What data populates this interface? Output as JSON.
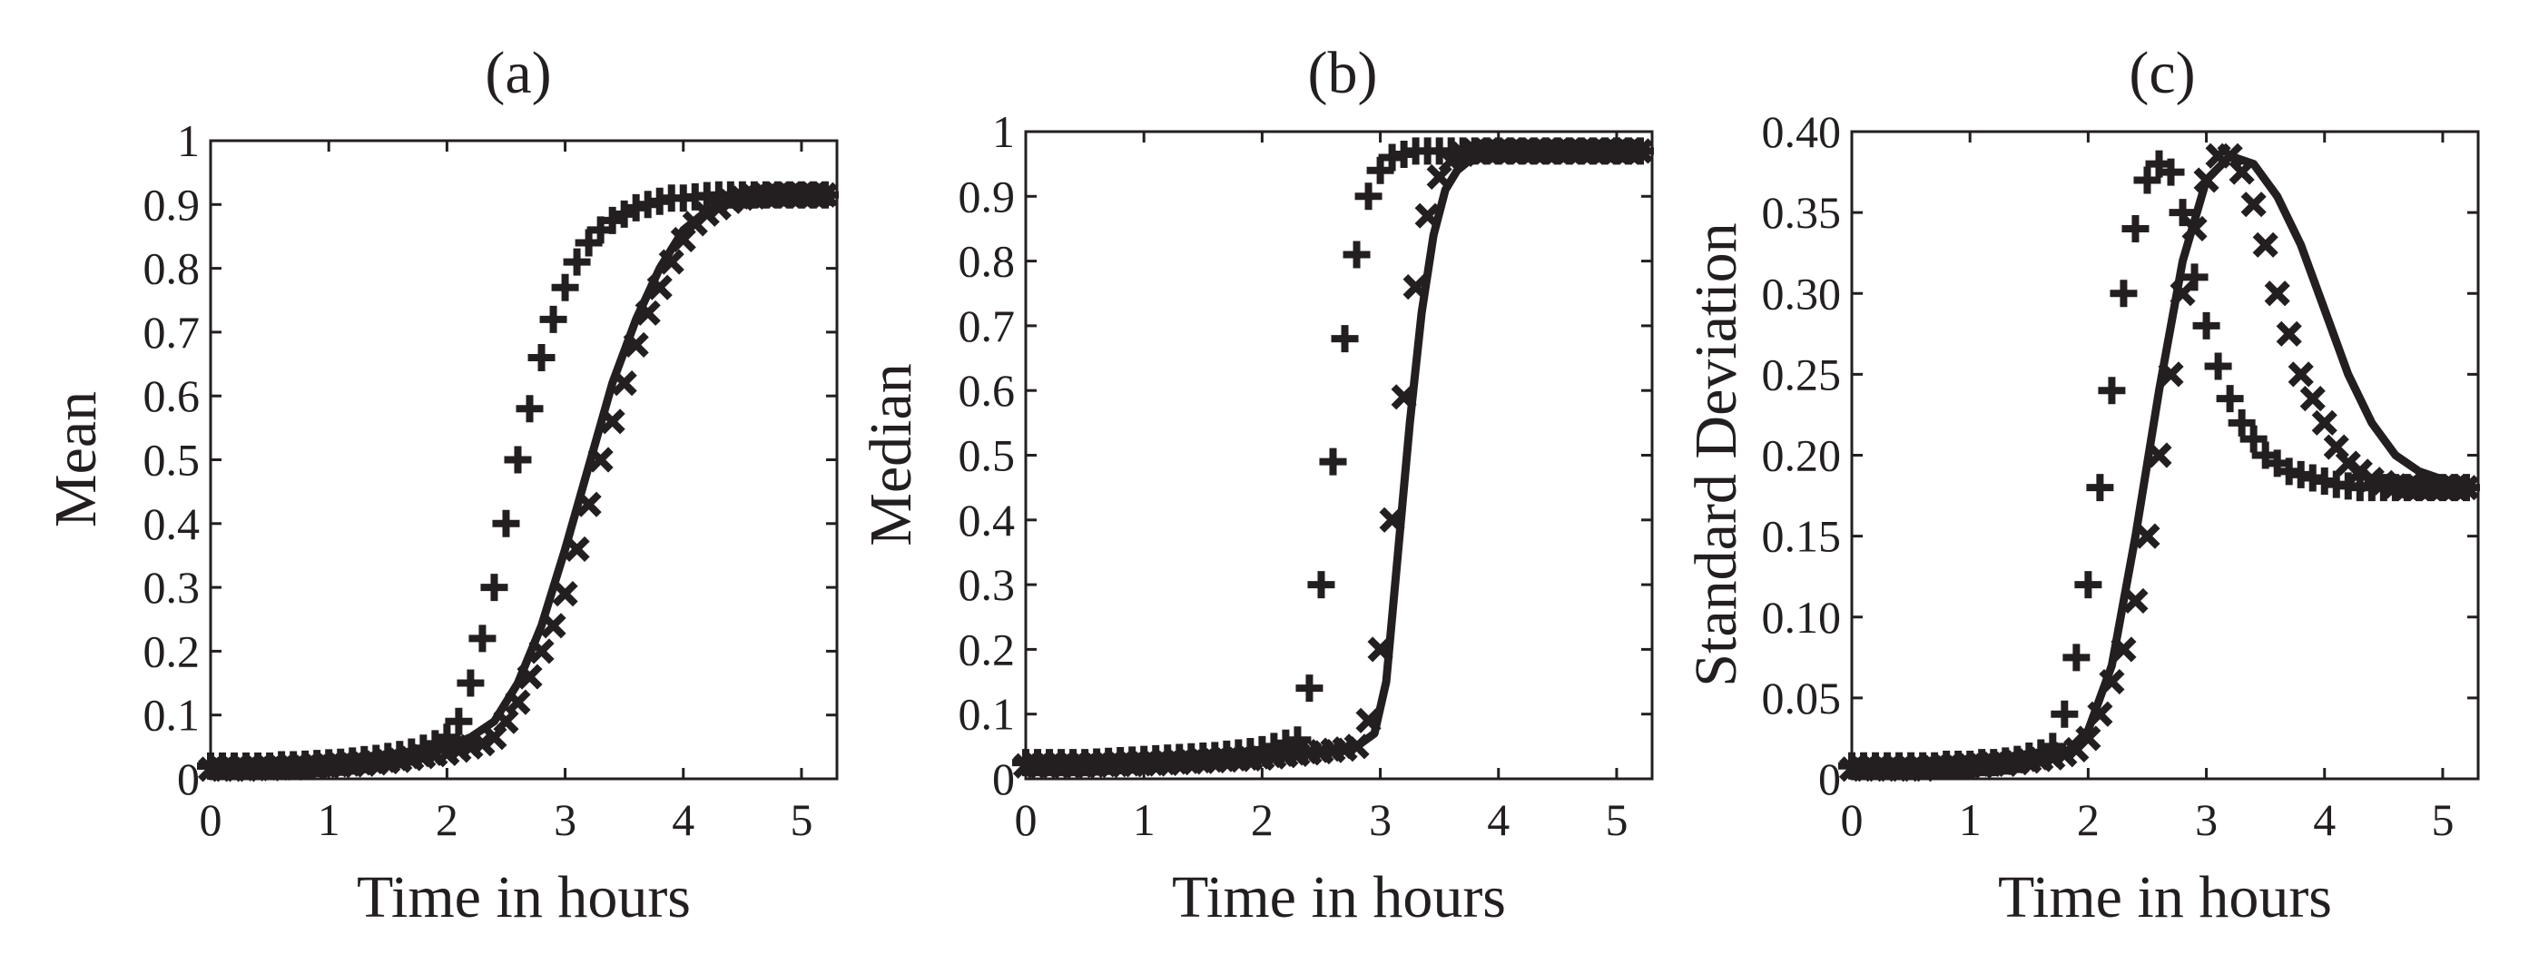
{
  "figure": {
    "panels": [
      {
        "id": "a",
        "title": "(a)"
      },
      {
        "id": "b",
        "title": "(b)"
      },
      {
        "id": "c",
        "title": "(c)"
      }
    ]
  },
  "chart_data": [
    {
      "type": "line",
      "title": "(a)",
      "xlabel": "Time in hours",
      "ylabel": "Mean",
      "xlim": [
        0,
        5.3
      ],
      "ylim": [
        0,
        1
      ],
      "xticks": [
        "0",
        "1",
        "2",
        "3",
        "4",
        "5"
      ],
      "yticks": [
        "0",
        "0.1",
        "0.2",
        "0.3",
        "0.4",
        "0.5",
        "0.6",
        "0.7",
        "0.8",
        "0.9",
        "1"
      ],
      "legend": "none",
      "grid": false,
      "series": [
        {
          "name": "solid",
          "style": "line",
          "x": [
            0,
            0.5,
            1.0,
            1.5,
            2.0,
            2.2,
            2.4,
            2.6,
            2.8,
            3.0,
            3.2,
            3.4,
            3.6,
            3.8,
            4.0,
            4.2,
            4.4,
            4.6,
            4.8,
            5.0,
            5.25
          ],
          "y": [
            0.012,
            0.015,
            0.02,
            0.03,
            0.05,
            0.065,
            0.09,
            0.15,
            0.24,
            0.36,
            0.49,
            0.62,
            0.72,
            0.8,
            0.86,
            0.89,
            0.905,
            0.91,
            0.915,
            0.915,
            0.915
          ]
        },
        {
          "name": "plus",
          "style": "marker-plus",
          "x": [
            0,
            0.1,
            0.2,
            0.3,
            0.4,
            0.5,
            0.6,
            0.7,
            0.8,
            0.9,
            1.0,
            1.1,
            1.2,
            1.3,
            1.4,
            1.5,
            1.6,
            1.7,
            1.8,
            1.9,
            2.0,
            2.1,
            2.2,
            2.3,
            2.4,
            2.5,
            2.6,
            2.7,
            2.8,
            2.9,
            3.0,
            3.1,
            3.2,
            3.3,
            3.4,
            3.5,
            3.6,
            3.7,
            3.8,
            3.9,
            4.0,
            4.1,
            4.2,
            4.3,
            4.4,
            4.5,
            4.6,
            4.7,
            4.8,
            4.9,
            5.0,
            5.1,
            5.2
          ],
          "y": [
            0.02,
            0.02,
            0.02,
            0.02,
            0.02,
            0.02,
            0.022,
            0.022,
            0.023,
            0.024,
            0.025,
            0.026,
            0.028,
            0.03,
            0.032,
            0.035,
            0.038,
            0.042,
            0.048,
            0.055,
            0.065,
            0.09,
            0.15,
            0.22,
            0.3,
            0.4,
            0.5,
            0.58,
            0.66,
            0.72,
            0.77,
            0.81,
            0.84,
            0.86,
            0.875,
            0.885,
            0.895,
            0.9,
            0.905,
            0.91,
            0.91,
            0.912,
            0.914,
            0.915,
            0.915,
            0.915,
            0.915,
            0.915,
            0.915,
            0.915,
            0.915,
            0.915,
            0.915
          ]
        },
        {
          "name": "cross",
          "style": "marker-x",
          "x": [
            0,
            0.1,
            0.2,
            0.3,
            0.4,
            0.5,
            0.6,
            0.7,
            0.8,
            0.9,
            1.0,
            1.1,
            1.2,
            1.3,
            1.4,
            1.5,
            1.6,
            1.7,
            1.8,
            1.9,
            2.0,
            2.1,
            2.2,
            2.3,
            2.4,
            2.5,
            2.6,
            2.7,
            2.8,
            2.9,
            3.0,
            3.1,
            3.2,
            3.3,
            3.4,
            3.5,
            3.6,
            3.7,
            3.8,
            3.9,
            4.0,
            4.1,
            4.2,
            4.3,
            4.4,
            4.5,
            4.6,
            4.7,
            4.8,
            4.9,
            5.0,
            5.1,
            5.2
          ],
          "y": [
            0.015,
            0.015,
            0.015,
            0.015,
            0.016,
            0.016,
            0.017,
            0.017,
            0.018,
            0.019,
            0.02,
            0.021,
            0.022,
            0.023,
            0.025,
            0.027,
            0.029,
            0.032,
            0.035,
            0.038,
            0.04,
            0.045,
            0.05,
            0.055,
            0.065,
            0.09,
            0.12,
            0.16,
            0.2,
            0.24,
            0.29,
            0.36,
            0.43,
            0.5,
            0.56,
            0.62,
            0.68,
            0.73,
            0.77,
            0.81,
            0.845,
            0.87,
            0.885,
            0.895,
            0.905,
            0.91,
            0.912,
            0.914,
            0.915,
            0.915,
            0.915,
            0.915,
            0.915
          ]
        }
      ]
    },
    {
      "type": "line",
      "title": "(b)",
      "xlabel": "Time in hours",
      "ylabel": "Median",
      "xlim": [
        0,
        5.3
      ],
      "ylim": [
        0,
        1
      ],
      "xticks": [
        "0",
        "1",
        "2",
        "3",
        "4",
        "5"
      ],
      "yticks": [
        "0",
        "0.1",
        "0.2",
        "0.3",
        "0.4",
        "0.5",
        "0.6",
        "0.7",
        "0.8",
        "0.9",
        "1"
      ],
      "legend": "none",
      "grid": false,
      "series": [
        {
          "name": "solid",
          "style": "line",
          "x": [
            0,
            0.5,
            1.0,
            1.5,
            2.0,
            2.5,
            2.8,
            2.95,
            3.05,
            3.15,
            3.25,
            3.35,
            3.45,
            3.55,
            3.65,
            3.75,
            3.9,
            4.2,
            4.6,
            5.0,
            5.25
          ],
          "y": [
            0.015,
            0.018,
            0.02,
            0.025,
            0.03,
            0.04,
            0.05,
            0.07,
            0.15,
            0.35,
            0.55,
            0.72,
            0.84,
            0.91,
            0.94,
            0.955,
            0.965,
            0.97,
            0.97,
            0.97,
            0.97
          ]
        },
        {
          "name": "plus",
          "style": "marker-plus",
          "x": [
            0,
            0.1,
            0.2,
            0.3,
            0.4,
            0.5,
            0.6,
            0.7,
            0.8,
            0.9,
            1.0,
            1.1,
            1.2,
            1.3,
            1.4,
            1.5,
            1.6,
            1.7,
            1.8,
            1.9,
            2.0,
            2.1,
            2.2,
            2.3,
            2.4,
            2.5,
            2.6,
            2.7,
            2.8,
            2.9,
            3.0,
            3.1,
            3.2,
            3.3,
            3.4,
            3.5,
            3.6,
            3.7,
            3.8,
            3.9,
            4.0,
            4.1,
            4.2,
            4.3,
            4.4,
            4.5,
            4.6,
            4.7,
            4.8,
            4.9,
            5.0,
            5.1,
            5.2
          ],
          "y": [
            0.025,
            0.025,
            0.025,
            0.025,
            0.025,
            0.025,
            0.026,
            0.027,
            0.028,
            0.029,
            0.03,
            0.031,
            0.032,
            0.033,
            0.034,
            0.035,
            0.036,
            0.038,
            0.04,
            0.042,
            0.045,
            0.05,
            0.055,
            0.06,
            0.14,
            0.3,
            0.49,
            0.68,
            0.81,
            0.9,
            0.94,
            0.96,
            0.965,
            0.97,
            0.97,
            0.97,
            0.97,
            0.97,
            0.97,
            0.97,
            0.97,
            0.97,
            0.97,
            0.97,
            0.97,
            0.97,
            0.97,
            0.97,
            0.97,
            0.97,
            0.97,
            0.97,
            0.97
          ]
        },
        {
          "name": "cross",
          "style": "marker-x",
          "x": [
            0,
            0.1,
            0.2,
            0.3,
            0.4,
            0.5,
            0.6,
            0.7,
            0.8,
            0.9,
            1.0,
            1.1,
            1.2,
            1.3,
            1.4,
            1.5,
            1.6,
            1.7,
            1.8,
            1.9,
            2.0,
            2.1,
            2.2,
            2.3,
            2.4,
            2.5,
            2.6,
            2.7,
            2.8,
            2.9,
            3.0,
            3.1,
            3.2,
            3.3,
            3.4,
            3.5,
            3.6,
            3.7,
            3.8,
            3.9,
            4.0,
            4.1,
            4.2,
            4.3,
            4.4,
            4.5,
            4.6,
            4.7,
            4.8,
            4.9,
            5.0,
            5.1,
            5.2
          ],
          "y": [
            0.02,
            0.02,
            0.02,
            0.02,
            0.02,
            0.02,
            0.021,
            0.021,
            0.022,
            0.022,
            0.023,
            0.023,
            0.024,
            0.025,
            0.026,
            0.027,
            0.028,
            0.029,
            0.03,
            0.031,
            0.032,
            0.034,
            0.036,
            0.038,
            0.04,
            0.042,
            0.044,
            0.046,
            0.05,
            0.09,
            0.2,
            0.4,
            0.59,
            0.76,
            0.87,
            0.93,
            0.955,
            0.965,
            0.97,
            0.97,
            0.97,
            0.97,
            0.97,
            0.97,
            0.97,
            0.97,
            0.97,
            0.97,
            0.97,
            0.97,
            0.97,
            0.97,
            0.97
          ]
        }
      ]
    },
    {
      "type": "line",
      "title": "(c)",
      "xlabel": "Time in hours",
      "ylabel": "Standard Deviation",
      "xlim": [
        0,
        5.3
      ],
      "ylim": [
        0,
        0.4
      ],
      "xticks": [
        "0",
        "1",
        "2",
        "3",
        "4",
        "5"
      ],
      "yticks": [
        "0",
        "0.05",
        "0.10",
        "0.15",
        "0.20",
        "0.25",
        "0.30",
        "0.35",
        "0.40"
      ],
      "legend": "none",
      "grid": false,
      "series": [
        {
          "name": "solid",
          "style": "line",
          "x": [
            0,
            0.5,
            1.0,
            1.5,
            1.8,
            2.0,
            2.2,
            2.4,
            2.6,
            2.8,
            3.0,
            3.2,
            3.4,
            3.6,
            3.8,
            4.0,
            4.2,
            4.4,
            4.6,
            4.8,
            5.0,
            5.25
          ],
          "y": [
            0.005,
            0.006,
            0.007,
            0.01,
            0.015,
            0.03,
            0.07,
            0.15,
            0.24,
            0.32,
            0.37,
            0.385,
            0.38,
            0.36,
            0.33,
            0.29,
            0.25,
            0.22,
            0.2,
            0.19,
            0.185,
            0.18
          ]
        },
        {
          "name": "plus",
          "style": "marker-plus",
          "x": [
            0,
            0.1,
            0.2,
            0.3,
            0.4,
            0.5,
            0.6,
            0.7,
            0.8,
            0.9,
            1.0,
            1.1,
            1.2,
            1.3,
            1.4,
            1.5,
            1.6,
            1.7,
            1.8,
            1.9,
            2.0,
            2.1,
            2.2,
            2.3,
            2.4,
            2.5,
            2.6,
            2.7,
            2.8,
            2.9,
            3.0,
            3.1,
            3.2,
            3.3,
            3.4,
            3.5,
            3.6,
            3.7,
            3.8,
            3.9,
            4.0,
            4.1,
            4.2,
            4.3,
            4.4,
            4.5,
            4.6,
            4.7,
            4.8,
            4.9,
            5.0,
            5.1,
            5.2
          ],
          "y": [
            0.008,
            0.008,
            0.008,
            0.008,
            0.008,
            0.008,
            0.008,
            0.008,
            0.009,
            0.009,
            0.009,
            0.01,
            0.01,
            0.011,
            0.012,
            0.014,
            0.016,
            0.02,
            0.04,
            0.075,
            0.12,
            0.18,
            0.24,
            0.3,
            0.34,
            0.37,
            0.38,
            0.375,
            0.35,
            0.31,
            0.28,
            0.255,
            0.235,
            0.22,
            0.21,
            0.2,
            0.195,
            0.19,
            0.188,
            0.186,
            0.184,
            0.182,
            0.181,
            0.18,
            0.18,
            0.18,
            0.18,
            0.18,
            0.18,
            0.18,
            0.18,
            0.18,
            0.18
          ]
        },
        {
          "name": "cross",
          "style": "marker-x",
          "x": [
            0,
            0.1,
            0.2,
            0.3,
            0.4,
            0.5,
            0.6,
            0.7,
            0.8,
            0.9,
            1.0,
            1.1,
            1.2,
            1.3,
            1.4,
            1.5,
            1.6,
            1.7,
            1.8,
            1.9,
            2.0,
            2.1,
            2.2,
            2.3,
            2.4,
            2.5,
            2.6,
            2.7,
            2.8,
            2.9,
            3.0,
            3.1,
            3.2,
            3.3,
            3.4,
            3.5,
            3.6,
            3.7,
            3.8,
            3.9,
            4.0,
            4.1,
            4.2,
            4.3,
            4.4,
            4.5,
            4.6,
            4.7,
            4.8,
            4.9,
            5.0,
            5.1,
            5.2
          ],
          "y": [
            0.006,
            0.006,
            0.006,
            0.006,
            0.006,
            0.006,
            0.006,
            0.007,
            0.007,
            0.007,
            0.008,
            0.008,
            0.009,
            0.009,
            0.01,
            0.011,
            0.012,
            0.013,
            0.015,
            0.018,
            0.025,
            0.04,
            0.06,
            0.08,
            0.11,
            0.15,
            0.2,
            0.25,
            0.3,
            0.34,
            0.37,
            0.385,
            0.385,
            0.375,
            0.355,
            0.33,
            0.3,
            0.275,
            0.25,
            0.235,
            0.22,
            0.205,
            0.195,
            0.19,
            0.185,
            0.183,
            0.181,
            0.18,
            0.18,
            0.18,
            0.18,
            0.18,
            0.18
          ]
        }
      ]
    }
  ]
}
